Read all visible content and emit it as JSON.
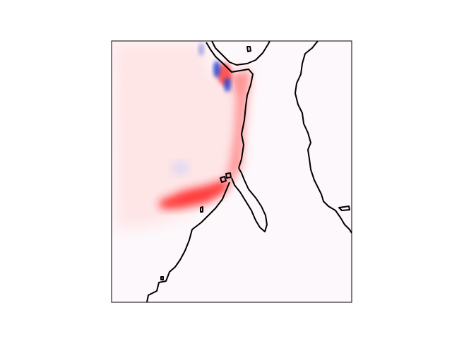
{
  "figure": {
    "type": "field-map",
    "colormap": "bwr",
    "colors": {
      "background": "#ffffff",
      "field_base": "#fdf8fb",
      "positive": "#ff0000",
      "negative": "#1f3fd0",
      "coastline": "#000000",
      "frame": "#000000"
    },
    "axes": {
      "ticks": false,
      "grid": false,
      "legend": false
    }
  }
}
